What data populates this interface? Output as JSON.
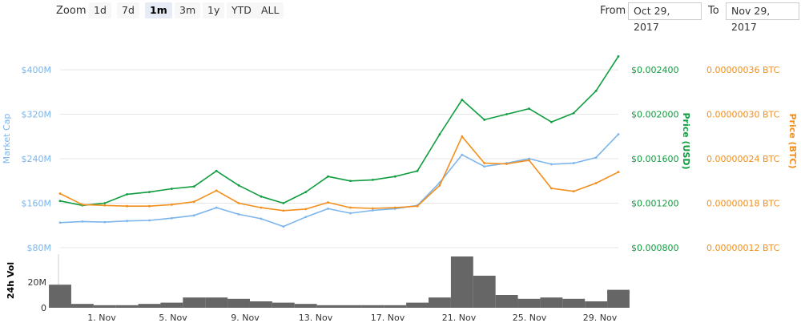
{
  "toolbar": {
    "zoom_label": "Zoom",
    "zoom_buttons": [
      "1d",
      "7d",
      "1m",
      "3m",
      "1y",
      "YTD",
      "ALL"
    ],
    "active_zoom": "1m",
    "from_label": "From",
    "from_value": "Oct 29, 2017",
    "to_label": "To",
    "to_value": "Nov 29, 2017"
  },
  "colors": {
    "market_cap": "#7cb5ec",
    "price_usd": "#0f9d3f",
    "price_btc": "#f28f1c",
    "volume": "#666666"
  },
  "chart_data": {
    "type": "line",
    "x": [
      "Oct 29",
      "Oct 31",
      "Nov 2",
      "Nov 4",
      "Nov 6",
      "Nov 8",
      "Nov 9",
      "Nov 10",
      "Nov 11",
      "Nov 12",
      "Nov 13",
      "Nov 14",
      "Nov 16",
      "Nov 17",
      "Nov 18",
      "Nov 20",
      "Nov 22",
      "Nov 22.5",
      "Nov 23",
      "Nov 24",
      "Nov 25",
      "Nov 26",
      "Nov 27",
      "Nov 28",
      "Nov 29",
      "Nov 29.5"
    ],
    "x_ticks": [
      "1. Nov",
      "5. Nov",
      "9. Nov",
      "13. Nov",
      "17. Nov",
      "21. Nov",
      "25. Nov",
      "29. Nov"
    ],
    "series": [
      {
        "name": "Market Cap",
        "axis": "Market Cap",
        "values": [
          125,
          127,
          126,
          128,
          129,
          133,
          138,
          152,
          140,
          132,
          118,
          135,
          150,
          142,
          147,
          150,
          156,
          197,
          247,
          226,
          232,
          240,
          230,
          232,
          242,
          284
        ]
      },
      {
        "name": "Price (USD)",
        "axis": "Price (USD)",
        "values": [
          0.00122,
          0.00118,
          0.0012,
          0.00128,
          0.0013,
          0.00133,
          0.00135,
          0.00149,
          0.00136,
          0.00126,
          0.0012,
          0.0013,
          0.00144,
          0.0014,
          0.00141,
          0.00144,
          0.00149,
          0.00182,
          0.00213,
          0.00195,
          0.002,
          0.00205,
          0.00193,
          0.00201,
          0.00221,
          0.00252
        ]
      },
      {
        "name": "Price (BTC)",
        "axis": "Price (BTC)",
        "values": [
          1.93e-07,
          1.78e-07,
          1.77e-07,
          1.76e-07,
          1.76e-07,
          1.78e-07,
          1.82e-07,
          1.97e-07,
          1.8e-07,
          1.74e-07,
          1.7e-07,
          1.72e-07,
          1.81e-07,
          1.74e-07,
          1.73e-07,
          1.74e-07,
          1.76e-07,
          2.04e-07,
          2.7e-07,
          2.34e-07,
          2.33e-07,
          2.38e-07,
          2e-07,
          1.96e-07,
          2.07e-07,
          2.22e-07
        ]
      }
    ],
    "volume": {
      "name": "24h Vol",
      "values": [
        18,
        3,
        2,
        2,
        3,
        4,
        8,
        8,
        7,
        5,
        4,
        3,
        2,
        2,
        2,
        2,
        4,
        8,
        40,
        25,
        10,
        7,
        8,
        7,
        5,
        14
      ]
    },
    "axes": {
      "market_cap": {
        "label": "Market Cap",
        "ticks": [
          "$80M",
          "$160M",
          "$240M",
          "$320M",
          "$400M"
        ],
        "ylim": [
          80,
          400
        ]
      },
      "price_usd": {
        "label": "Price (USD)",
        "ticks": [
          "$0.000800",
          "$0.001200",
          "$0.001600",
          "$0.002000",
          "$0.002400"
        ],
        "ylim": [
          0.0008,
          0.0024
        ]
      },
      "price_btc": {
        "label": "Price (BTC)",
        "ticks": [
          "0.00000012 BTC",
          "0.00000018 BTC",
          "0.00000024 BTC",
          "0.00000030 BTC",
          "0.00000036 BTC"
        ],
        "ylim": [
          1.2e-07,
          3.6e-07
        ]
      },
      "volume": {
        "label": "24h Vol",
        "ticks": [
          "0",
          "20M"
        ],
        "ylim": [
          0,
          40
        ]
      }
    },
    "grid": true,
    "legend": "none"
  }
}
